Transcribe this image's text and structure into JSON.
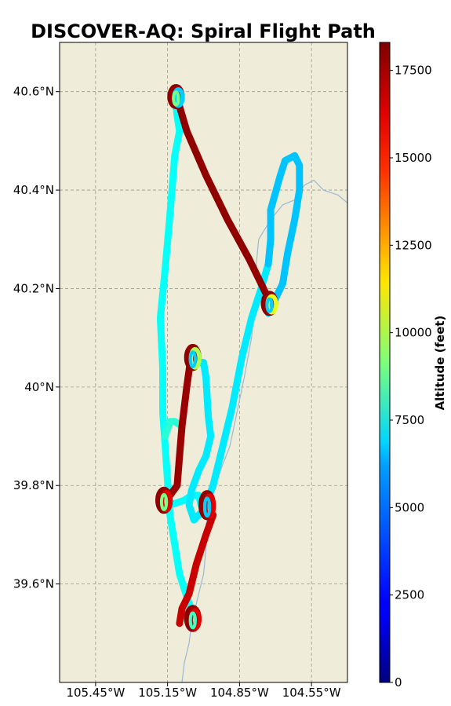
{
  "chart_data": {
    "type": "map",
    "title": "DISCOVER-AQ: Spiral Flight Path",
    "lon_range": [
      -105.6,
      -104.4
    ],
    "lat_range": [
      39.4,
      40.7
    ],
    "x_ticks": [
      {
        "value": -105.45,
        "label": "105.45°W"
      },
      {
        "value": -105.15,
        "label": "105.15°W"
      },
      {
        "value": -104.85,
        "label": "104.85°W"
      },
      {
        "value": -104.55,
        "label": "104.55°W"
      }
    ],
    "y_ticks": [
      {
        "value": 39.6,
        "label": "39.6°N"
      },
      {
        "value": 39.8,
        "label": "39.8°N"
      },
      {
        "value": 40.0,
        "label": "40°N"
      },
      {
        "value": 40.2,
        "label": "40.2°N"
      },
      {
        "value": 40.4,
        "label": "40.4°N"
      },
      {
        "value": 40.6,
        "label": "40.6°N"
      }
    ],
    "grid": true,
    "land_color": "#efedd9",
    "river_color": "#9cb8d6",
    "colorbar": {
      "label": "Altitude (feet)",
      "range": [
        0,
        18300
      ],
      "ticks": [
        0,
        2500,
        5000,
        7500,
        10000,
        12500,
        15000,
        17500
      ],
      "colormap": "jet"
    },
    "river": [
      [
        -104.39,
        40.37
      ],
      [
        -104.44,
        40.39
      ],
      [
        -104.5,
        40.4
      ],
      [
        -104.54,
        40.42
      ],
      [
        -104.58,
        40.41
      ],
      [
        -104.62,
        40.38
      ],
      [
        -104.67,
        40.37
      ],
      [
        -104.72,
        40.34
      ],
      [
        -104.77,
        40.3
      ],
      [
        -104.78,
        40.25
      ],
      [
        -104.77,
        40.2
      ],
      [
        -104.79,
        40.15
      ],
      [
        -104.8,
        40.1
      ],
      [
        -104.83,
        40.02
      ],
      [
        -104.86,
        39.95
      ],
      [
        -104.89,
        39.88
      ],
      [
        -104.93,
        39.83
      ],
      [
        -104.97,
        39.77
      ],
      [
        -104.99,
        39.72
      ],
      [
        -104.99,
        39.67
      ],
      [
        -105.0,
        39.62
      ],
      [
        -105.03,
        39.56
      ],
      [
        -105.05,
        39.52
      ],
      [
        -105.06,
        39.48
      ],
      [
        -105.08,
        39.44
      ],
      [
        -105.09,
        39.4
      ]
    ],
    "segments": [
      {
        "alt": 7000,
        "points": [
          [
            -105.12,
            40.6
          ],
          [
            -105.11,
            40.55
          ],
          [
            -105.1,
            40.52
          ],
          [
            -105.12,
            40.47
          ],
          [
            -105.14,
            40.35
          ],
          [
            -105.16,
            40.24
          ],
          [
            -105.18,
            40.14
          ],
          [
            -105.17,
            40.04
          ],
          [
            -105.17,
            39.95
          ],
          [
            -105.16,
            39.88
          ],
          [
            -105.15,
            39.81
          ],
          [
            -105.14,
            39.74
          ],
          [
            -105.12,
            39.68
          ],
          [
            -105.1,
            39.62
          ],
          [
            -105.06,
            39.56
          ],
          [
            -105.04,
            39.54
          ]
        ]
      },
      {
        "alt": 7600,
        "points": [
          [
            -105.16,
            39.9
          ],
          [
            -105.14,
            39.93
          ],
          [
            -105.12,
            39.93
          ],
          [
            -105.09,
            39.92
          ]
        ]
      },
      {
        "alt": 6800,
        "points": [
          [
            -105.14,
            39.76
          ],
          [
            -105.08,
            39.77
          ],
          [
            -105.05,
            39.78
          ],
          [
            -105.02,
            39.78
          ],
          [
            -105.01,
            39.76
          ]
        ]
      },
      {
        "alt": 6500,
        "points": [
          [
            -105.04,
            40.06
          ],
          [
            -105.02,
            40.05
          ],
          [
            -105.0,
            40.05
          ],
          [
            -104.99,
            40.02
          ],
          [
            -104.98,
            39.94
          ],
          [
            -104.97,
            39.9
          ],
          [
            -104.99,
            39.86
          ],
          [
            -105.02,
            39.83
          ],
          [
            -105.05,
            39.79
          ],
          [
            -105.06,
            39.76
          ],
          [
            -105.04,
            39.73
          ],
          [
            -105.0,
            39.75
          ],
          [
            -104.96,
            39.8
          ],
          [
            -104.92,
            39.88
          ],
          [
            -104.88,
            39.96
          ],
          [
            -104.84,
            40.06
          ],
          [
            -104.8,
            40.14
          ],
          [
            -104.76,
            40.2
          ],
          [
            -104.73,
            40.25
          ]
        ]
      },
      {
        "alt": 5800,
        "points": [
          [
            -104.73,
            40.25
          ],
          [
            -104.72,
            40.3
          ],
          [
            -104.72,
            40.36
          ],
          [
            -104.68,
            40.43
          ],
          [
            -104.66,
            40.46
          ],
          [
            -104.62,
            40.47
          ],
          [
            -104.6,
            40.45
          ],
          [
            -104.6,
            40.4
          ],
          [
            -104.62,
            40.34
          ],
          [
            -104.65,
            40.27
          ],
          [
            -104.67,
            40.21
          ],
          [
            -104.7,
            40.18
          ],
          [
            -104.72,
            40.16
          ],
          [
            -104.73,
            40.15
          ]
        ]
      },
      {
        "alt": 18000,
        "points": [
          [
            -105.1,
            40.57
          ],
          [
            -105.07,
            40.52
          ],
          [
            -104.99,
            40.43
          ],
          [
            -104.9,
            40.34
          ],
          [
            -104.81,
            40.26
          ],
          [
            -104.74,
            40.19
          ]
        ]
      },
      {
        "alt": 17800,
        "points": [
          [
            -105.05,
            40.07
          ],
          [
            -105.07,
            40.0
          ],
          [
            -105.09,
            39.92
          ],
          [
            -105.1,
            39.86
          ],
          [
            -105.11,
            39.8
          ],
          [
            -105.14,
            39.78
          ]
        ]
      },
      {
        "alt": 17000,
        "points": [
          [
            -104.96,
            39.74
          ],
          [
            -104.99,
            39.7
          ],
          [
            -105.03,
            39.64
          ],
          [
            -105.06,
            39.58
          ],
          [
            -105.09,
            39.55
          ],
          [
            -105.1,
            39.52
          ]
        ]
      }
    ],
    "spirals": [
      {
        "lon": -105.11,
        "lat": 40.59,
        "rx": 0.025,
        "ry": 0.02,
        "colors": [
          18000,
          6000,
          9000
        ]
      },
      {
        "lon": -104.72,
        "lat": 40.17,
        "rx": 0.025,
        "ry": 0.02,
        "colors": [
          18000,
          11000,
          6000
        ]
      },
      {
        "lon": -105.04,
        "lat": 40.06,
        "rx": 0.025,
        "ry": 0.022,
        "colors": [
          18000,
          10000,
          6000
        ]
      },
      {
        "lon": -105.16,
        "lat": 39.77,
        "rx": 0.025,
        "ry": 0.022,
        "colors": [
          18000,
          16500,
          9000
        ]
      },
      {
        "lon": -104.98,
        "lat": 39.76,
        "rx": 0.025,
        "ry": 0.025,
        "colors": [
          18000,
          16500,
          6000
        ]
      },
      {
        "lon": -105.04,
        "lat": 39.53,
        "rx": 0.025,
        "ry": 0.022,
        "colors": [
          18000,
          16500,
          8000
        ]
      }
    ]
  }
}
